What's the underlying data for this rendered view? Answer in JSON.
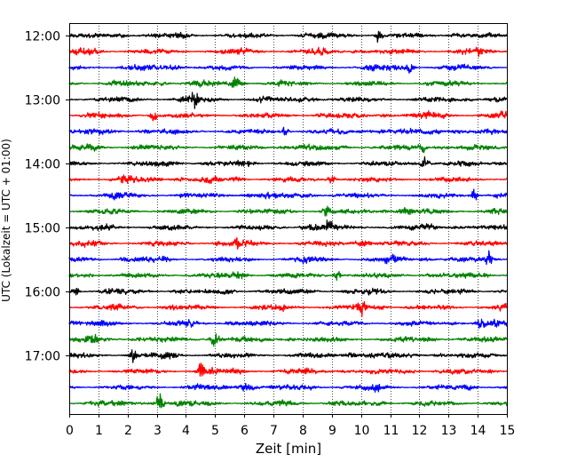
{
  "chart_data": {
    "type": "line",
    "title": "",
    "xlabel": "Zeit  [min]",
    "ylabel": "UTC (Lokalzeit = UTC + 01:00)",
    "x_ticks": [
      "0",
      "1",
      "2",
      "3",
      "4",
      "5",
      "6",
      "7",
      "8",
      "9",
      "10",
      "11",
      "12",
      "13",
      "14",
      "15"
    ],
    "xlim": [
      0,
      15
    ],
    "y_ticks": [
      "12:00",
      "13:00",
      "14:00",
      "15:00",
      "16:00",
      "17:00"
    ],
    "y_tick_rows": [
      0,
      4,
      8,
      12,
      16,
      20
    ],
    "trace_start": "12:00",
    "trace_interval_min": 15,
    "trace_count": 24,
    "trace_colors": [
      "#000000",
      "#ff0000",
      "#0000ff",
      "#008000"
    ],
    "grid": "vertical dotted at each minute",
    "series": [
      {
        "start": "12:00",
        "color": "#000000",
        "peak_min": 10.6,
        "peak_amp": 0.28
      },
      {
        "start": "12:15",
        "color": "#ff0000",
        "peak_min": 14.1,
        "peak_amp": 0.22
      },
      {
        "start": "12:30",
        "color": "#0000ff",
        "peak_min": 11.7,
        "peak_amp": 0.24
      },
      {
        "start": "12:45",
        "color": "#008000",
        "peak_min": 5.7,
        "peak_amp": 0.26
      },
      {
        "start": "13:00",
        "color": "#000000",
        "peak_min": 4.3,
        "peak_amp": 0.34
      },
      {
        "start": "13:15",
        "color": "#ff0000",
        "peak_min": 2.9,
        "peak_amp": 0.26
      },
      {
        "start": "13:30",
        "color": "#0000ff",
        "peak_min": 7.4,
        "peak_amp": 0.26
      },
      {
        "start": "13:45",
        "color": "#008000",
        "peak_min": 12.1,
        "peak_amp": 0.24
      },
      {
        "start": "14:00",
        "color": "#000000",
        "peak_min": 12.2,
        "peak_amp": 0.26
      },
      {
        "start": "14:15",
        "color": "#ff0000",
        "peak_min": 9.0,
        "peak_amp": 0.24
      },
      {
        "start": "14:30",
        "color": "#0000ff",
        "peak_min": 13.9,
        "peak_amp": 0.26
      },
      {
        "start": "14:45",
        "color": "#008000",
        "peak_min": 8.8,
        "peak_amp": 0.28
      },
      {
        "start": "15:00",
        "color": "#000000",
        "peak_min": 8.9,
        "peak_amp": 0.32
      },
      {
        "start": "15:15",
        "color": "#ff0000",
        "peak_min": 5.8,
        "peak_amp": 0.26
      },
      {
        "start": "15:30",
        "color": "#0000ff",
        "peak_min": 14.4,
        "peak_amp": 0.3
      },
      {
        "start": "15:45",
        "color": "#008000",
        "peak_min": 9.2,
        "peak_amp": 0.22
      },
      {
        "start": "16:00",
        "color": "#000000",
        "peak_min": 0.2,
        "peak_amp": 0.26
      },
      {
        "start": "16:15",
        "color": "#ff0000",
        "peak_min": 10.0,
        "peak_amp": 0.24
      },
      {
        "start": "16:30",
        "color": "#0000ff",
        "peak_min": 14.1,
        "peak_amp": 0.22
      },
      {
        "start": "16:45",
        "color": "#008000",
        "peak_min": 5.0,
        "peak_amp": 0.38
      },
      {
        "start": "17:00",
        "color": "#000000",
        "peak_min": 2.2,
        "peak_amp": 0.3
      },
      {
        "start": "17:15",
        "color": "#ff0000",
        "peak_min": 4.5,
        "peak_amp": 0.34
      },
      {
        "start": "17:30",
        "color": "#0000ff",
        "peak_min": 10.5,
        "peak_amp": 0.24
      },
      {
        "start": "17:45",
        "color": "#008000",
        "peak_min": 3.1,
        "peak_amp": 0.44
      }
    ]
  }
}
